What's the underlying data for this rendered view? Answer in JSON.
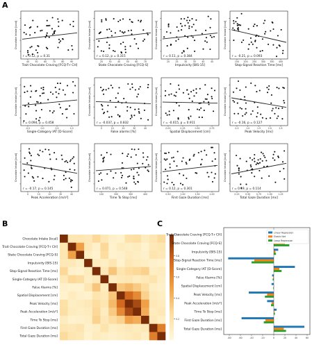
{
  "figure": {
    "panel_labels": [
      "A",
      "B",
      "C"
    ]
  },
  "chart_data": [
    {
      "panel": "A",
      "type": "scatter",
      "grid": false,
      "ylabel": "Chocolate Intake [kcal]",
      "subplots": [
        {
          "xlabel": "Trait Chocolate Craving [FCQ-T-r CH]",
          "stat": "r = 0.12, p = 0.31",
          "xticks": [
            "40",
            "50",
            "60",
            "70",
            "80",
            "90"
          ],
          "slope": 0.3
        },
        {
          "xlabel": "State Chocolate Craving [FCQ-S]",
          "stat": "r = 0.12, p = 0.315",
          "xticks": [
            "20",
            "30",
            "40",
            "50",
            "60",
            "70"
          ],
          "slope": 0.3
        },
        {
          "xlabel": "Impulsivity [BIS-15]",
          "stat": "r = 0.11, p = 0.384",
          "xticks": [
            "20",
            "25",
            "30",
            "35",
            "40",
            "45"
          ],
          "slope": 0.28
        },
        {
          "xlabel": "Stop-Signal Reaction Time [ms]",
          "stat": "r = -0.21, p = 0.093",
          "xticks": [
            "150",
            "200",
            "250",
            "300",
            "350",
            "400"
          ],
          "slope": -0.6
        },
        {
          "xlabel": "Single-Category IAT [D-Score]",
          "stat": "r = 0.094, p = 0.458",
          "xticks": [
            "-0.5",
            "0.0",
            "0.5",
            "1.0"
          ],
          "slope": 0.25
        },
        {
          "xlabel": "False alarms [%]",
          "stat": "r = -0.037, p = 0.832",
          "xticks": [
            "0",
            "10",
            "20",
            "30",
            "40"
          ],
          "slope": -0.1
        },
        {
          "xlabel": "Spatial Displacement [cm]",
          "stat": "r = -0.015, p = 0.911",
          "xticks": [
            "0.00",
            "0.25",
            "0.50",
            "0.75"
          ],
          "slope": -0.05
        },
        {
          "xlabel": "Peak Velocity [ms]",
          "stat": "r = -0.16, p = 0.127",
          "xticks": [
            "0.5",
            "1.0",
            "1.5",
            "2.0",
            "2.5"
          ],
          "slope": -0.45
        },
        {
          "xlabel": "Peak Acceleration [m/s²]",
          "stat": "r = -0.17, p = 0.145",
          "xticks": [
            "0",
            "10",
            "20",
            "30",
            "40"
          ],
          "slope": -0.45
        },
        {
          "xlabel": "Time To Stop [ms]",
          "stat": "r = 0.071, p = 0.548",
          "xticks": [
            "100",
            "200",
            "300",
            "400"
          ],
          "slope": 0.2
        },
        {
          "xlabel": "First Gaze Duration [ms]",
          "stat": "r = 0.12, p = 0.301",
          "xticks": [
            "0.50",
            "1.00",
            "1.50",
            "2.00"
          ],
          "slope": 0.3
        },
        {
          "xlabel": "Total Gaze Duration [ms]",
          "stat": "r = 0.19, p = 0.114",
          "xticks": [
            "0.25",
            "0.50",
            "0.75",
            "1.00",
            "1.25"
          ],
          "slope": 0.5
        }
      ]
    },
    {
      "panel": "B",
      "type": "heatmap",
      "labels": [
        "Chocolate Intake [kcal]",
        "Trait Chocolate Craving [FCQ-T-r CH]",
        "State Chocolate Craving [FCQ-S]",
        "Impulsivity [BIS-15]",
        "Stop-Signal Reaction Time [ms]",
        "Single-Category IAT [D-Score]",
        "False Alarms [%]",
        "Spatial Displacement [cm]",
        "Peak Velocity [ms]",
        "Peak Acceleration [m/s²]",
        "Time To Stop [ms]",
        "First Gaze Duration [ms]",
        "Total Gaze Duration [ms]"
      ],
      "colorbar_ticks": [
        "1.0",
        "0.8",
        "0.6",
        "0.4",
        "0.2"
      ],
      "matrix": [
        [
          1.0,
          0.14,
          0.14,
          0.12,
          0.22,
          0.12,
          0.06,
          0.05,
          0.18,
          0.19,
          0.09,
          0.14,
          0.21
        ],
        [
          0.14,
          1.0,
          0.45,
          0.12,
          0.06,
          0.22,
          0.05,
          0.1,
          0.08,
          0.1,
          0.05,
          0.12,
          0.14
        ],
        [
          0.14,
          0.45,
          1.0,
          0.08,
          0.05,
          0.2,
          0.05,
          0.06,
          0.1,
          0.08,
          0.06,
          0.15,
          0.12
        ],
        [
          0.12,
          0.12,
          0.08,
          1.0,
          0.1,
          0.08,
          0.14,
          0.05,
          0.12,
          0.1,
          0.08,
          0.06,
          0.05
        ],
        [
          0.22,
          0.06,
          0.05,
          0.1,
          1.0,
          0.12,
          0.3,
          0.15,
          0.2,
          0.22,
          0.25,
          0.08,
          0.1
        ],
        [
          0.12,
          0.22,
          0.2,
          0.08,
          0.12,
          1.0,
          0.1,
          0.12,
          0.14,
          0.1,
          0.12,
          0.16,
          0.08
        ],
        [
          0.06,
          0.05,
          0.05,
          0.14,
          0.3,
          0.1,
          1.0,
          0.3,
          0.35,
          0.28,
          0.2,
          0.08,
          0.06
        ],
        [
          0.05,
          0.1,
          0.06,
          0.05,
          0.15,
          0.12,
          0.3,
          1.0,
          0.7,
          0.55,
          0.25,
          0.1,
          0.08
        ],
        [
          0.18,
          0.08,
          0.1,
          0.12,
          0.2,
          0.14,
          0.35,
          0.7,
          1.0,
          0.85,
          0.45,
          0.12,
          0.1
        ],
        [
          0.19,
          0.1,
          0.08,
          0.1,
          0.22,
          0.1,
          0.28,
          0.55,
          0.85,
          1.0,
          0.4,
          0.1,
          0.12
        ],
        [
          0.09,
          0.05,
          0.06,
          0.08,
          0.25,
          0.12,
          0.2,
          0.25,
          0.45,
          0.4,
          1.0,
          0.12,
          0.08
        ],
        [
          0.14,
          0.12,
          0.15,
          0.06,
          0.08,
          0.16,
          0.08,
          0.1,
          0.12,
          0.1,
          0.12,
          1.0,
          0.6
        ],
        [
          0.21,
          0.14,
          0.12,
          0.05,
          0.1,
          0.08,
          0.06,
          0.08,
          0.1,
          0.12,
          0.08,
          0.6,
          1.0
        ]
      ]
    },
    {
      "panel": "C",
      "type": "bar",
      "orientation": "horizontal",
      "categories": [
        "Trait Chocolate Craving [FCQ-T-r CH]",
        "State Chocolate Craving [FCQ-S]",
        "Impulsivity [BIS-15]",
        "Stop-Signal Reaction Time [ms]",
        "Single-Category IAT [D-Score]",
        "False Alarms [%]",
        "Spatial Displacement [cm]",
        "Peak Velocity [ms]",
        "Peak Acceleration [m/s²]",
        "Time To Stop [ms]",
        "First Gaze Duration [ms]",
        "Total Gaze Duration [ms]"
      ],
      "series": [
        {
          "name": "Linear Regression",
          "color": "#1f77b4",
          "values": [
            2,
            52,
            8,
            -82,
            38,
            -3,
            -4,
            -45,
            -12,
            5,
            -58,
            55
          ]
        },
        {
          "name": "Elastic Net",
          "color": "#ff7f0e",
          "values": [
            -1,
            20,
            3,
            -35,
            10,
            -1,
            0,
            -12,
            -4,
            1,
            -15,
            18
          ]
        },
        {
          "name": "Lasso Regression",
          "color": "#2ca02c",
          "values": [
            -1,
            28,
            4,
            -40,
            14,
            -2,
            -1,
            -16,
            -5,
            2,
            -18,
            22
          ]
        }
      ],
      "xticks": [
        "-80",
        "-60",
        "-40",
        "-20",
        "0",
        "20",
        "40",
        "60"
      ],
      "xlim": [
        -90,
        65
      ]
    }
  ]
}
